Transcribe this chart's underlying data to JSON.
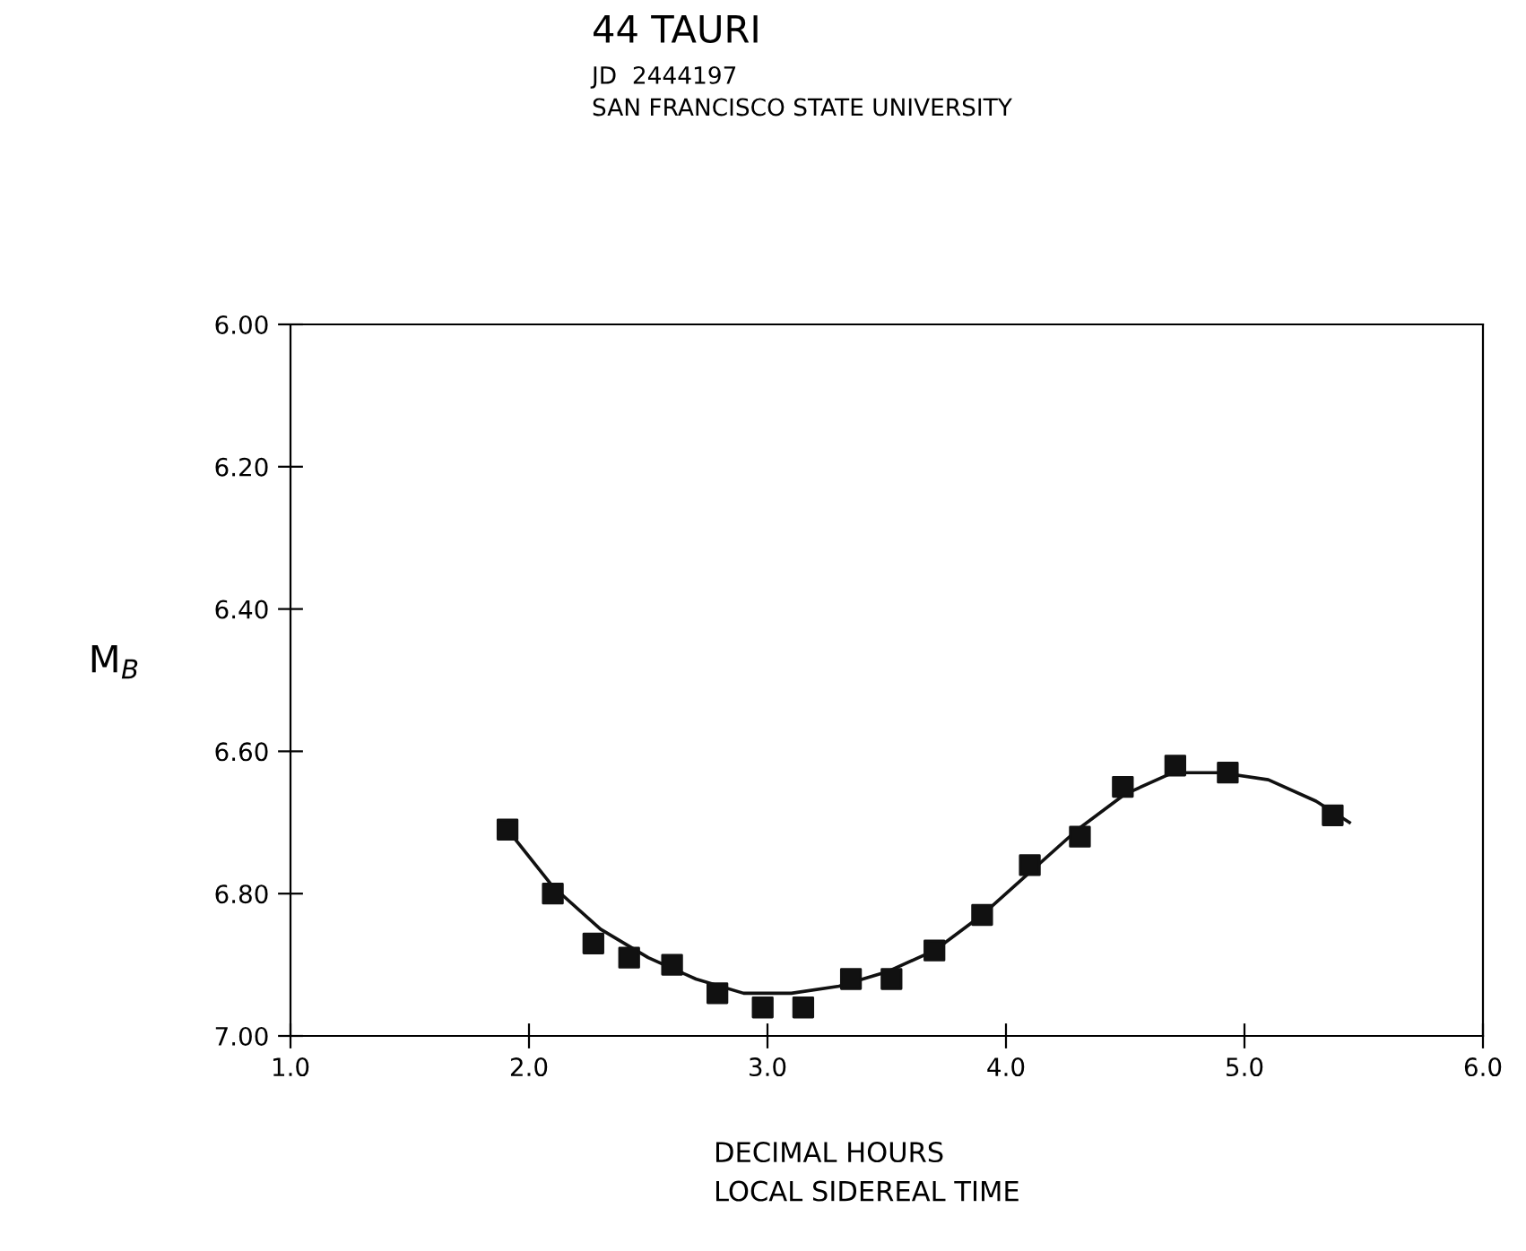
{
  "chart_data": {
    "type": "scatter",
    "title": "44 TAURI",
    "subtitle": "JD  2444197\nSAN FRANCISCO STATE UNIVERSITY",
    "xlabel": "DECIMAL HOURS\nLOCAL SIDEREAL TIME",
    "ylabel": "M$_{B}$",
    "xlim": [
      1.0,
      6.0
    ],
    "xticks": [
      {
        "value": 1.0,
        "label": "1.0"
      },
      {
        "value": 2.0,
        "label": "2.0"
      },
      {
        "value": 3.0,
        "label": "3.0"
      },
      {
        "value": 4.0,
        "label": "4.0"
      },
      {
        "value": 5.0,
        "label": "5.0"
      },
      {
        "value": 6.0,
        "label": "6.0"
      }
    ],
    "ylim": [
      7.0,
      6.0
    ],
    "yticks": [
      {
        "value": 6.0,
        "label": "6.00"
      },
      {
        "value": 6.2,
        "label": "6.20"
      },
      {
        "value": 6.4,
        "label": "6.40"
      },
      {
        "value": 6.6,
        "label": "6.60"
      },
      {
        "value": 6.8,
        "label": "6.80"
      },
      {
        "value": 7.0,
        "label": "7.00"
      }
    ],
    "grid": false,
    "series": [
      {
        "marker": "square",
        "color": "#111111",
        "x": [
          1.91,
          2.1,
          2.27,
          2.42,
          2.6,
          2.79,
          2.98,
          3.15,
          3.35,
          3.52,
          3.7,
          3.9,
          4.1,
          4.31,
          4.49,
          4.71,
          4.93,
          5.37
        ],
        "values": [
          6.71,
          6.8,
          6.87,
          6.89,
          6.9,
          6.94,
          6.96,
          6.96,
          6.92,
          6.92,
          6.88,
          6.83,
          6.76,
          6.72,
          6.65,
          6.62,
          6.63,
          6.69
        ]
      },
      {
        "type": "line",
        "color": "#111111",
        "x": [
          1.91,
          2.1,
          2.3,
          2.5,
          2.7,
          2.9,
          3.1,
          3.3,
          3.5,
          3.7,
          3.9,
          4.1,
          4.3,
          4.5,
          4.7,
          4.9,
          5.1,
          5.3,
          5.44
        ],
        "values": [
          6.71,
          6.79,
          6.85,
          6.89,
          6.92,
          6.94,
          6.94,
          6.93,
          6.91,
          6.88,
          6.83,
          6.77,
          6.71,
          6.66,
          6.63,
          6.63,
          6.64,
          6.67,
          6.7
        ]
      }
    ]
  }
}
